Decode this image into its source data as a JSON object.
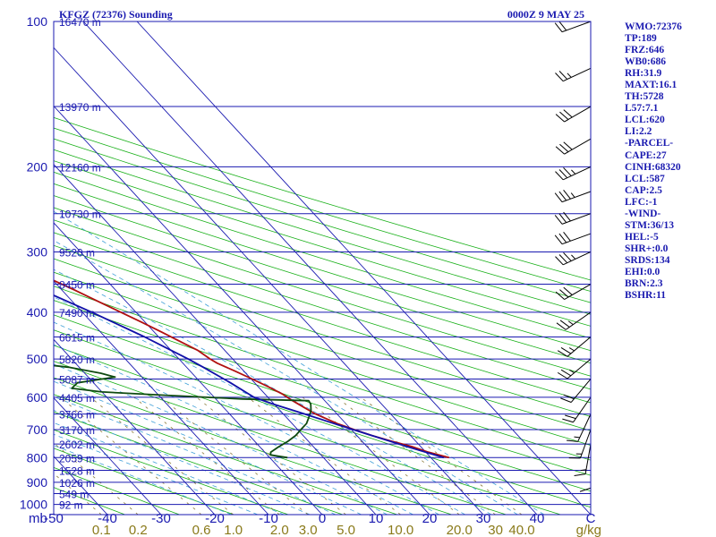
{
  "chart_data": {
    "type": "skew-t",
    "title": "KFGZ (72376) Sounding",
    "time": "0000Z  9 MAY 25",
    "pressure_axis": {
      "ticks": [
        100,
        200,
        300,
        400,
        500,
        600,
        700,
        800,
        900,
        1000
      ],
      "unit_label": "mb",
      "range": [
        100,
        1050
      ]
    },
    "height_labels": [
      {
        "p": 100,
        "label": "16470 m"
      },
      {
        "p": 150,
        "label": "13970 m"
      },
      {
        "p": 200,
        "label": "12160 m"
      },
      {
        "p": 250,
        "label": "10730 m"
      },
      {
        "p": 300,
        "label": "9520 m"
      },
      {
        "p": 350,
        "label": "8450 m"
      },
      {
        "p": 400,
        "label": "7490 m"
      },
      {
        "p": 450,
        "label": "6615 m"
      },
      {
        "p": 500,
        "label": "5820 m"
      },
      {
        "p": 550,
        "label": "5087 m"
      },
      {
        "p": 600,
        "label": "4405 m"
      },
      {
        "p": 650,
        "label": "3766 m"
      },
      {
        "p": 700,
        "label": "3170 m"
      },
      {
        "p": 750,
        "label": "2602 m"
      },
      {
        "p": 800,
        "label": "2059 m"
      },
      {
        "p": 850,
        "label": "1528 m"
      },
      {
        "p": 900,
        "label": "1026 m"
      },
      {
        "p": 950,
        "label": "549 m"
      },
      {
        "p": 1000,
        "label": "92 m"
      }
    ],
    "temperature_axis": {
      "ticks": [
        -50,
        -40,
        -30,
        -20,
        -10,
        0,
        10,
        20,
        30,
        40
      ],
      "unit_label": "C",
      "range": [
        -50,
        50
      ]
    },
    "mixing_ratio_axis": {
      "ticks": [
        0.1,
        0.2,
        0.6,
        1.0,
        2.0,
        3.0,
        5.0,
        10.0,
        20.0,
        30.0,
        40.0
      ],
      "labels": [
        "0.1",
        "0.2",
        "0.6",
        "1.0",
        "2.0",
        "3.0",
        "5.0",
        "10.0",
        "20.0",
        "30",
        "40.0"
      ],
      "unit_label": "g/kg"
    },
    "series": [
      {
        "role": "temperature",
        "color": "#b01010",
        "points": [
          [
            800,
            33.4
          ],
          [
            780,
            30.5
          ],
          [
            760,
            28.5
          ],
          [
            740,
            25.5
          ],
          [
            720,
            22.8
          ],
          [
            700,
            20.5
          ],
          [
            680,
            18.4
          ],
          [
            650,
            16.0
          ],
          [
            630,
            15.0
          ],
          [
            610,
            14.0
          ],
          [
            590,
            13.2
          ],
          [
            570,
            11.8
          ],
          [
            550,
            10.2
          ],
          [
            530,
            8.4
          ],
          [
            510,
            6.4
          ],
          [
            500,
            5.8
          ],
          [
            480,
            5.0
          ],
          [
            460,
            3.2
          ],
          [
            440,
            1.4
          ],
          [
            420,
            -0.6
          ],
          [
            400,
            -2.8
          ],
          [
            380,
            -5.2
          ],
          [
            360,
            -7.6
          ],
          [
            340,
            -10.4
          ],
          [
            320,
            -13.4
          ],
          [
            300,
            -16.6
          ],
          [
            280,
            -20.0
          ],
          [
            260,
            -23.8
          ],
          [
            250,
            -26.0
          ],
          [
            240,
            -27.0
          ],
          [
            230,
            -28.4
          ],
          [
            220,
            -29.0
          ],
          [
            210,
            -30.8
          ],
          [
            200,
            -33.0
          ],
          [
            190,
            -35.0
          ],
          [
            180,
            -37.0
          ],
          [
            170,
            -39.4
          ],
          [
            160,
            -41.6
          ],
          [
            150,
            -43.6
          ],
          [
            140,
            -46.0
          ],
          [
            130,
            -48.4
          ],
          [
            120,
            -50.6
          ],
          [
            110,
            -53.2
          ],
          [
            100,
            -55.6
          ]
        ]
      },
      {
        "role": "dewpoint",
        "color": "#0e4a10",
        "points": [
          [
            800,
            3.3
          ],
          [
            790,
            0.6
          ],
          [
            780,
            1.1
          ],
          [
            760,
            3.5
          ],
          [
            740,
            6.2
          ],
          [
            720,
            8.6
          ],
          [
            700,
            10.6
          ],
          [
            680,
            12.7
          ],
          [
            660,
            14.2
          ],
          [
            640,
            15.7
          ],
          [
            620,
            16.8
          ],
          [
            610,
            17.0
          ],
          [
            605,
            5.0
          ],
          [
            595,
            -8.0
          ],
          [
            585,
            -20.0
          ],
          [
            575,
            -25.0
          ],
          [
            560,
            -23.0
          ],
          [
            545,
            -15.0
          ],
          [
            535,
            -17.0
          ],
          [
            520,
            -22.0
          ],
          [
            505,
            -31.0
          ],
          [
            500,
            -37.5
          ],
          [
            480,
            -46.0
          ],
          [
            460,
            -45.0
          ],
          [
            440,
            -35.0
          ],
          [
            420,
            -27.0
          ],
          [
            400,
            -20.0
          ],
          [
            385,
            -16.5
          ],
          [
            370,
            -16.2
          ],
          [
            355,
            -26.4
          ],
          [
            340,
            -29.0
          ],
          [
            320,
            -24.0
          ],
          [
            300,
            -23.5
          ],
          [
            285,
            -26.2
          ],
          [
            270,
            -28.4
          ],
          [
            250,
            -31.0
          ],
          [
            230,
            -34.6
          ],
          [
            215,
            -37.0
          ],
          [
            200,
            -40.4
          ],
          [
            185,
            -46.6
          ],
          [
            170,
            -50.0
          ],
          [
            160,
            -52.3
          ],
          [
            150,
            -54.2
          ],
          [
            140,
            -55.0
          ],
          [
            130,
            -56.5
          ],
          [
            120,
            -57.2
          ],
          [
            110,
            -58.0
          ],
          [
            100,
            -59.0
          ]
        ]
      },
      {
        "role": "parcel",
        "color": "#1010a8",
        "points": [
          [
            800,
            32.4
          ],
          [
            760,
            27.6
          ],
          [
            720,
            22.8
          ],
          [
            680,
            17.8
          ],
          [
            650,
            14.0
          ],
          [
            620,
            9.8
          ],
          [
            600,
            7.4
          ],
          [
            560,
            5.5
          ],
          [
            520,
            3.1
          ],
          [
            500,
            1.7
          ],
          [
            450,
            -2.6
          ],
          [
            400,
            -8.2
          ],
          [
            350,
            -15.2
          ],
          [
            300,
            -24.5
          ],
          [
            250,
            -36.4
          ],
          [
            200,
            -51.4
          ],
          [
            150,
            -70.3
          ],
          [
            120,
            -83.6
          ],
          [
            100,
            -93.0
          ]
        ]
      }
    ],
    "winds": [
      {
        "p": 100,
        "dir": 250,
        "kt": 20
      },
      {
        "p": 125,
        "dir": 245,
        "kt": 25
      },
      {
        "p": 150,
        "dir": 240,
        "kt": 30
      },
      {
        "p": 175,
        "dir": 240,
        "kt": 30
      },
      {
        "p": 200,
        "dir": 245,
        "kt": 35
      },
      {
        "p": 225,
        "dir": 250,
        "kt": 35
      },
      {
        "p": 250,
        "dir": 250,
        "kt": 30
      },
      {
        "p": 275,
        "dir": 250,
        "kt": 30
      },
      {
        "p": 300,
        "dir": 245,
        "kt": 35
      },
      {
        "p": 350,
        "dir": 240,
        "kt": 30
      },
      {
        "p": 400,
        "dir": 235,
        "kt": 25
      },
      {
        "p": 450,
        "dir": 230,
        "kt": 25
      },
      {
        "p": 500,
        "dir": 230,
        "kt": 25
      },
      {
        "p": 550,
        "dir": 220,
        "kt": 20
      },
      {
        "p": 600,
        "dir": 215,
        "kt": 20
      },
      {
        "p": 650,
        "dir": 205,
        "kt": 15
      },
      {
        "p": 700,
        "dir": 200,
        "kt": 15
      },
      {
        "p": 750,
        "dir": 190,
        "kt": 15
      },
      {
        "p": 800,
        "dir": 180,
        "kt": 10
      }
    ],
    "indices": [
      "WMO:72376",
      "TP:189",
      "FRZ:646",
      "WB0:686",
      "RH:31.9",
      "MAXT:16.1",
      "TH:5728",
      "L57:7.1",
      "LCL:620",
      "LI:2.2",
      "-PARCEL-",
      "CAPE:27",
      "CINH:68320",
      "LCL:587",
      "CAP:2.5",
      "LFC:-1",
      "-WIND-",
      "STM:36/13",
      "HEL:-5",
      "SHR+:0.0",
      "SRDS:134",
      "EHI:0.0",
      "BRN:2.3",
      "BSHR:11"
    ],
    "colors": {
      "frame": "#1a1ab0",
      "isobar": "#1a1ab0",
      "isotherm": "#1a1ab0",
      "dry_adiabat": "#18b018",
      "moist_adiabat": "#40a0d8",
      "mixing_ratio": "#8a7a3a",
      "wind": "#000000"
    }
  }
}
